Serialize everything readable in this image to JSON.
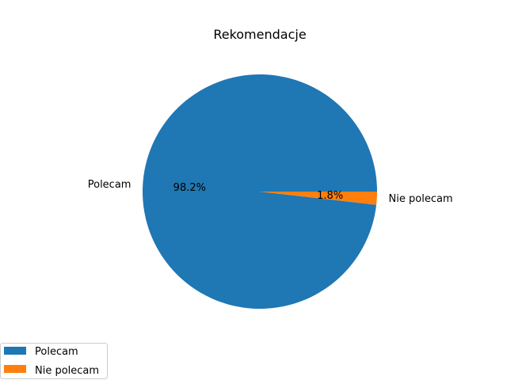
{
  "chart_data": {
    "type": "pie",
    "title": "Rekomendacje",
    "labels": [
      "Polecam",
      "Nie polecam"
    ],
    "values": [
      98.2,
      1.8
    ],
    "percent_labels": [
      "98.2%",
      "1.8%"
    ],
    "colors": [
      "#1f77b4",
      "#ff7f0e"
    ],
    "start_angle_deg": 0,
    "direction": "counterclockwise",
    "legend": {
      "placement": "bottom-left",
      "entries": [
        "Polecam",
        "Nie polecam"
      ]
    }
  }
}
